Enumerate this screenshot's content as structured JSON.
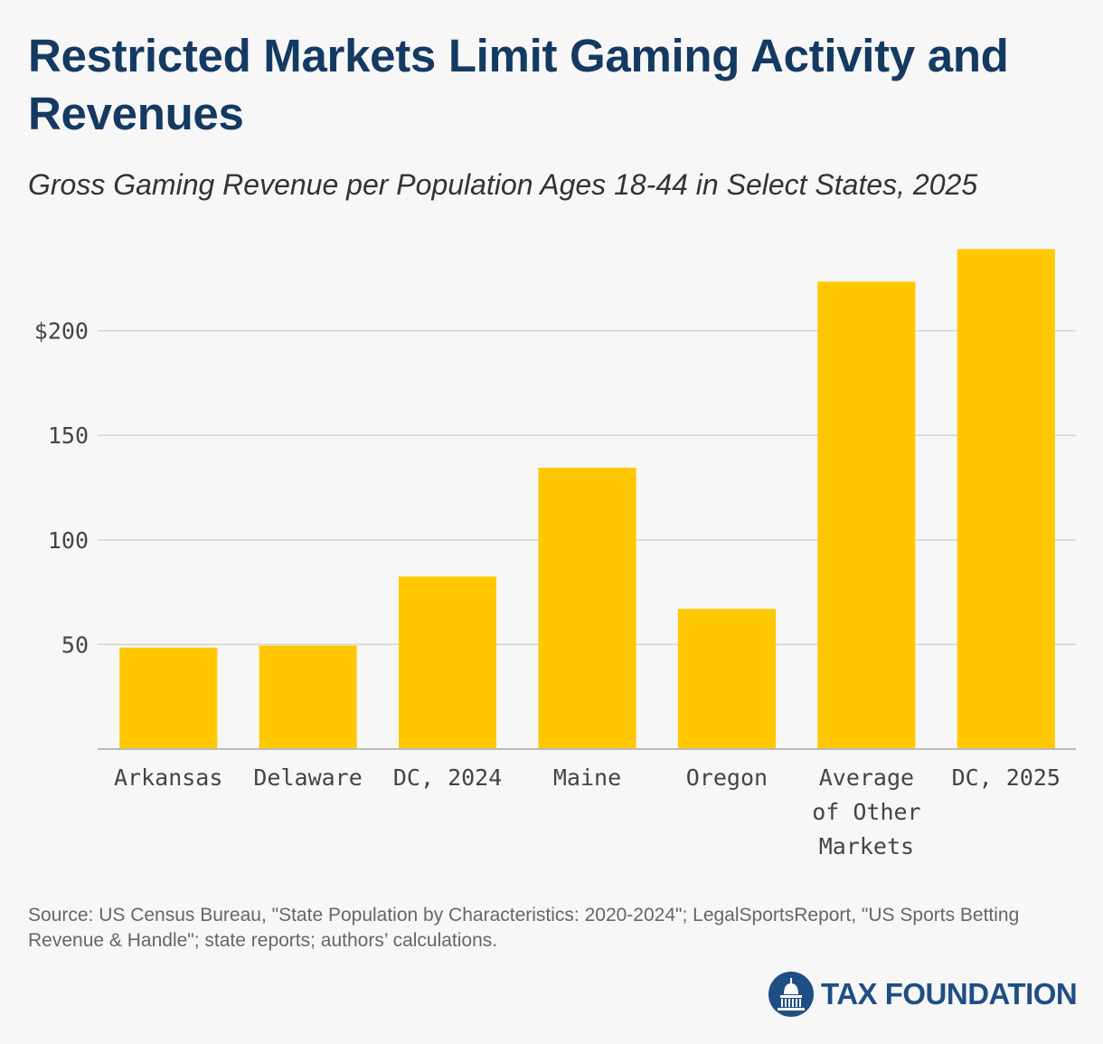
{
  "title": "Restricted Markets Limit Gaming Activity and Revenues",
  "subtitle": "Gross Gaming Revenue per Population Ages 18-44 in Select States, 2025",
  "source": "Source: US Census Bureau, \"State Population by Characteristics: 2020-2024\"; LegalSportsReport, \"US Sports Betting Revenue & Handle\"; state reports; authors’ calculations.",
  "logo": {
    "text": "TAX FOUNDATION",
    "icon": "capitol-dome-icon",
    "color": "#1F4E85"
  },
  "colors": {
    "title": "#143A62",
    "bar": "#FFC800",
    "grid": "#d4d4d4",
    "axis": "#bbbbbb",
    "tick_text": "#444444"
  },
  "chart_data": {
    "type": "bar",
    "categories": [
      "Arkansas",
      "Delaware",
      "DC, 2024",
      "Maine",
      "Oregon",
      "Average of Other Markets",
      "DC, 2025"
    ],
    "category_label_lines": [
      [
        "Arkansas"
      ],
      [
        "Delaware"
      ],
      [
        "DC, 2024"
      ],
      [
        "Maine"
      ],
      [
        "Oregon"
      ],
      [
        "Average",
        "of Other",
        "Markets"
      ],
      [
        "DC, 2025"
      ]
    ],
    "values": [
      48.5,
      49.5,
      82.5,
      134.5,
      67,
      223.5,
      239
    ],
    "y_ticks": [
      50,
      100,
      150,
      200
    ],
    "y_tick_labels": [
      "50",
      "100",
      "150",
      "$200"
    ],
    "ylim": [
      0,
      250
    ],
    "xlabel": "",
    "ylabel": "",
    "grid": true,
    "legend": "none"
  }
}
